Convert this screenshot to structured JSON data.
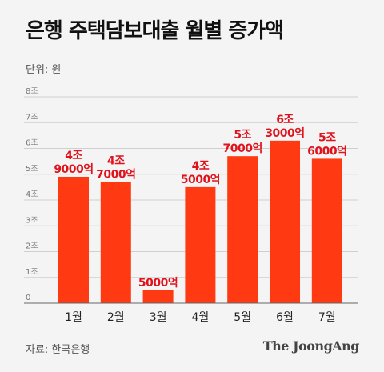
{
  "title": "은행 주택담보대출 월별 증가액",
  "unit_label": "단위: 원",
  "source_label": "자료: 한국은행",
  "logo": "The JoongAng",
  "colors": {
    "bar": "#ff3a12",
    "label": "#e0131d",
    "grid": "#cfcfcf",
    "axis": "#666666",
    "tick": "#777777"
  },
  "chart_data": {
    "type": "bar",
    "categories": [
      "1월",
      "2월",
      "3월",
      "4월",
      "5월",
      "6월",
      "7월"
    ],
    "values": [
      4.9,
      4.7,
      0.5,
      4.5,
      5.7,
      6.3,
      5.6
    ],
    "value_unit": "조",
    "data_labels": [
      [
        "4조",
        "9000억"
      ],
      [
        "4조",
        "7000억"
      ],
      [
        "5000억"
      ],
      [
        "4조",
        "5000억"
      ],
      [
        "5조",
        "7000억"
      ],
      [
        "6조",
        "3000억"
      ],
      [
        "5조",
        "6000억"
      ]
    ],
    "y_ticks": [
      "0",
      "1조",
      "2조",
      "3조",
      "4조",
      "5조",
      "6조",
      "7조",
      "8조"
    ],
    "ylim": [
      0,
      8
    ],
    "grid": true,
    "legend": "none",
    "title": "은행 주택담보대출 월별 증가액",
    "xlabel": "",
    "ylabel": ""
  }
}
